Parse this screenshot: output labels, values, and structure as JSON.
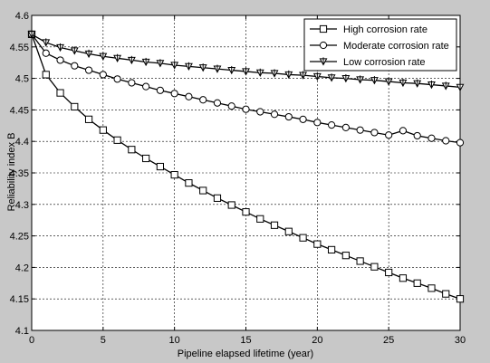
{
  "chart_data": {
    "type": "line",
    "xlabel": "Pipeline elapsed lifetime (year)",
    "ylabel": "Reliability index B",
    "xlim": [
      0,
      30
    ],
    "ylim": [
      4.1,
      4.6
    ],
    "xticks": [
      "0",
      "5",
      "10",
      "15",
      "20",
      "25",
      "30"
    ],
    "yticks": [
      "4.1",
      "4.15",
      "4.2",
      "4.25",
      "4.3",
      "4.35",
      "4.4",
      "4.45",
      "4.5",
      "4.55",
      "4.6"
    ],
    "grid": true,
    "legend_position": "top-right",
    "x": [
      0,
      1,
      2,
      3,
      4,
      5,
      6,
      7,
      8,
      9,
      10,
      11,
      12,
      13,
      14,
      15,
      16,
      17,
      18,
      19,
      20,
      21,
      22,
      23,
      24,
      25,
      26,
      27,
      28,
      29,
      30
    ],
    "series": [
      {
        "name": "High corrosion rate",
        "marker": "square",
        "values": [
          4.57,
          4.506,
          4.477,
          4.455,
          4.435,
          4.418,
          4.402,
          4.387,
          4.373,
          4.36,
          4.347,
          4.334,
          4.322,
          4.31,
          4.299,
          4.288,
          4.277,
          4.267,
          4.257,
          4.247,
          4.237,
          4.228,
          4.219,
          4.21,
          4.201,
          4.192,
          4.183,
          4.175,
          4.167,
          4.158,
          4.15
        ]
      },
      {
        "name": "Moderate corrosion rate",
        "marker": "circle",
        "values": [
          4.57,
          4.54,
          4.529,
          4.52,
          4.513,
          4.506,
          4.499,
          4.493,
          4.487,
          4.481,
          4.476,
          4.471,
          4.466,
          4.461,
          4.456,
          4.451,
          4.447,
          4.443,
          4.439,
          4.435,
          4.43,
          4.426,
          4.422,
          4.418,
          4.414,
          4.41,
          4.417,
          4.409,
          4.405,
          4.401,
          4.398
        ]
      },
      {
        "name": "Low corrosion rate",
        "marker": "triangle-down",
        "values": [
          4.57,
          4.557,
          4.549,
          4.544,
          4.539,
          4.535,
          4.532,
          4.529,
          4.526,
          4.524,
          4.521,
          4.519,
          4.517,
          4.515,
          4.513,
          4.511,
          4.509,
          4.508,
          4.506,
          4.505,
          4.503,
          4.501,
          4.5,
          4.498,
          4.497,
          4.495,
          4.493,
          4.492,
          4.49,
          4.488,
          4.486
        ]
      }
    ]
  }
}
